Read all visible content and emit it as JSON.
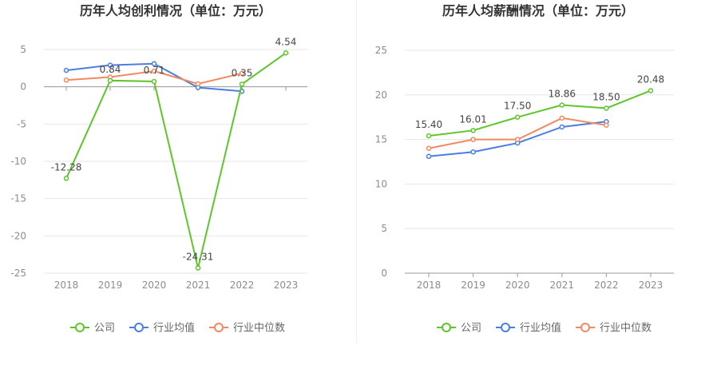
{
  "colors": {
    "company": "#5ec62b",
    "avg": "#4a7ee0",
    "median": "#f08a62",
    "grid": "#e6e6e6",
    "axis": "#999999",
    "tick": "#8c8c8c"
  },
  "legend": [
    {
      "key": "company",
      "label": "公司",
      "icon": "line-circle-icon"
    },
    {
      "key": "avg",
      "label": "行业均值",
      "icon": "line-circle-icon"
    },
    {
      "key": "median",
      "label": "行业中位数",
      "icon": "line-circle-icon"
    }
  ],
  "chart_data": [
    {
      "type": "line",
      "title": "历年人均创利情况（单位：万元）",
      "categories": [
        "2018",
        "2019",
        "2020",
        "2021",
        "2022",
        "2023"
      ],
      "ylim": [
        -25,
        5
      ],
      "yticks": [
        5,
        0,
        -5,
        -10,
        -15,
        -20,
        -25
      ],
      "grid": true,
      "legend_position": "bottom",
      "series": [
        {
          "key": "company",
          "name": "公司",
          "values": [
            -12.28,
            0.84,
            0.71,
            -24.31,
            0.35,
            4.54
          ],
          "labels": [
            "-12.28",
            "0.84",
            "0.71",
            "-24.31",
            "0.35",
            "4.54"
          ]
        },
        {
          "key": "avg",
          "name": "行业均值",
          "values": [
            2.2,
            2.9,
            3.1,
            -0.1,
            -0.6,
            null
          ]
        },
        {
          "key": "median",
          "name": "行业中位数",
          "values": [
            0.9,
            1.3,
            2.1,
            0.4,
            1.8,
            null
          ]
        }
      ]
    },
    {
      "type": "line",
      "title": "历年人均薪酬情况（单位：万元）",
      "categories": [
        "2018",
        "2019",
        "2020",
        "2021",
        "2022",
        "2023"
      ],
      "ylim": [
        0,
        25
      ],
      "yticks": [
        25,
        20,
        15,
        10,
        5,
        0
      ],
      "grid": true,
      "legend_position": "bottom",
      "series": [
        {
          "key": "company",
          "name": "公司",
          "values": [
            15.4,
            16.01,
            17.5,
            18.86,
            18.5,
            20.48
          ],
          "labels": [
            "15.40",
            "16.01",
            "17.50",
            "18.86",
            "18.50",
            "20.48"
          ]
        },
        {
          "key": "avg",
          "name": "行业均值",
          "values": [
            13.1,
            13.6,
            14.6,
            16.4,
            17.0,
            null
          ]
        },
        {
          "key": "median",
          "name": "行业中位数",
          "values": [
            14.0,
            15.0,
            15.0,
            17.4,
            16.6,
            null
          ]
        }
      ]
    }
  ]
}
